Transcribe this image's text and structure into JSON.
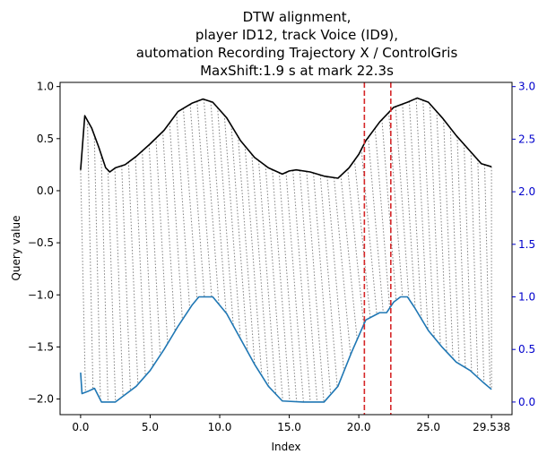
{
  "chart_data": {
    "type": "line",
    "title_lines": [
      "DTW alignment,",
      "player ID12, track Voice (ID9),",
      "automation Recording Trajectory X / ControlGris",
      "MaxShift:1.9 s at mark 22.3s"
    ],
    "xlabel": "Index",
    "ylabel": "Query value",
    "xlim": [
      -1.476,
      31.014
    ],
    "ylim_left": [
      -2.15,
      1.04
    ],
    "ylim_right": [
      -0.12,
      3.04
    ],
    "x_ticks": [
      {
        "value": 0.0,
        "label": "0.0"
      },
      {
        "value": 5.0,
        "label": "5.0"
      },
      {
        "value": 10.0,
        "label": "10.0"
      },
      {
        "value": 15.0,
        "label": "15.0"
      },
      {
        "value": 20.0,
        "label": "20.0"
      },
      {
        "value": 25.0,
        "label": "25.0"
      },
      {
        "value": 29.538,
        "label": "29.538"
      }
    ],
    "y_ticks_left": [
      {
        "value": 1.0,
        "label": "1.0"
      },
      {
        "value": 0.5,
        "label": "0.5"
      },
      {
        "value": 0.0,
        "label": "0.0"
      },
      {
        "value": -0.5,
        "label": "−0.5"
      },
      {
        "value": -1.0,
        "label": "−1.0"
      },
      {
        "value": -1.5,
        "label": "−1.5"
      },
      {
        "value": -2.0,
        "label": "−2.0"
      }
    ],
    "y_ticks_right": [
      {
        "value": 3.0,
        "label": "3.0"
      },
      {
        "value": 2.5,
        "label": "2.5"
      },
      {
        "value": 2.0,
        "label": "2.0"
      },
      {
        "value": 1.5,
        "label": "1.5"
      },
      {
        "value": 1.0,
        "label": "1.0"
      },
      {
        "value": 0.5,
        "label": "0.5"
      },
      {
        "value": 0.0,
        "label": "0.0"
      }
    ],
    "series": [
      {
        "axis": "left",
        "color": "#000000",
        "points": [
          [
            0.0,
            0.2
          ],
          [
            0.3,
            0.72
          ],
          [
            0.8,
            0.6
          ],
          [
            1.3,
            0.42
          ],
          [
            1.8,
            0.22
          ],
          [
            2.1,
            0.18
          ],
          [
            2.5,
            0.22
          ],
          [
            3.2,
            0.25
          ],
          [
            4.0,
            0.33
          ],
          [
            5.0,
            0.45
          ],
          [
            6.0,
            0.58
          ],
          [
            7.0,
            0.76
          ],
          [
            8.0,
            0.84
          ],
          [
            8.8,
            0.88
          ],
          [
            9.5,
            0.85
          ],
          [
            10.5,
            0.7
          ],
          [
            11.5,
            0.48
          ],
          [
            12.5,
            0.32
          ],
          [
            13.5,
            0.22
          ],
          [
            14.5,
            0.16
          ],
          [
            15.0,
            0.19
          ],
          [
            15.5,
            0.2
          ],
          [
            16.5,
            0.18
          ],
          [
            17.5,
            0.14
          ],
          [
            18.5,
            0.12
          ],
          [
            19.3,
            0.22
          ],
          [
            20.0,
            0.35
          ],
          [
            20.5,
            0.48
          ],
          [
            21.5,
            0.66
          ],
          [
            22.5,
            0.8
          ],
          [
            23.5,
            0.85
          ],
          [
            24.2,
            0.89
          ],
          [
            25.0,
            0.85
          ],
          [
            26.0,
            0.7
          ],
          [
            27.0,
            0.53
          ],
          [
            28.0,
            0.38
          ],
          [
            28.8,
            0.26
          ],
          [
            29.538,
            0.23
          ]
        ]
      },
      {
        "axis": "right",
        "color": "#1f77b4",
        "points": [
          [
            0.0,
            0.28
          ],
          [
            0.1,
            0.08
          ],
          [
            0.5,
            0.1
          ],
          [
            1.0,
            0.13
          ],
          [
            1.5,
            0.0
          ],
          [
            2.5,
            0.0
          ],
          [
            3.0,
            0.05
          ],
          [
            4.0,
            0.15
          ],
          [
            5.0,
            0.3
          ],
          [
            6.0,
            0.5
          ],
          [
            7.0,
            0.72
          ],
          [
            8.0,
            0.92
          ],
          [
            8.5,
            1.0
          ],
          [
            9.5,
            1.0
          ],
          [
            10.5,
            0.84
          ],
          [
            11.5,
            0.6
          ],
          [
            12.5,
            0.36
          ],
          [
            13.5,
            0.15
          ],
          [
            14.5,
            0.01
          ],
          [
            16.0,
            0.0
          ],
          [
            17.5,
            0.0
          ],
          [
            18.5,
            0.15
          ],
          [
            19.5,
            0.48
          ],
          [
            20.5,
            0.78
          ],
          [
            21.5,
            0.85
          ],
          [
            22.0,
            0.85
          ],
          [
            22.5,
            0.95
          ],
          [
            23.0,
            1.0
          ],
          [
            23.5,
            1.0
          ],
          [
            24.0,
            0.9
          ],
          [
            25.0,
            0.68
          ],
          [
            26.0,
            0.52
          ],
          [
            27.0,
            0.38
          ],
          [
            28.0,
            0.3
          ],
          [
            29.0,
            0.18
          ],
          [
            29.538,
            0.12
          ]
        ]
      }
    ],
    "alignment_lines": {
      "color": "#808080",
      "count": 60
    },
    "marker_lines": [
      {
        "x": 20.4,
        "color": "#d62728"
      },
      {
        "x": 22.3,
        "color": "#d62728"
      }
    ],
    "right_axis_color": "#0000cc"
  }
}
